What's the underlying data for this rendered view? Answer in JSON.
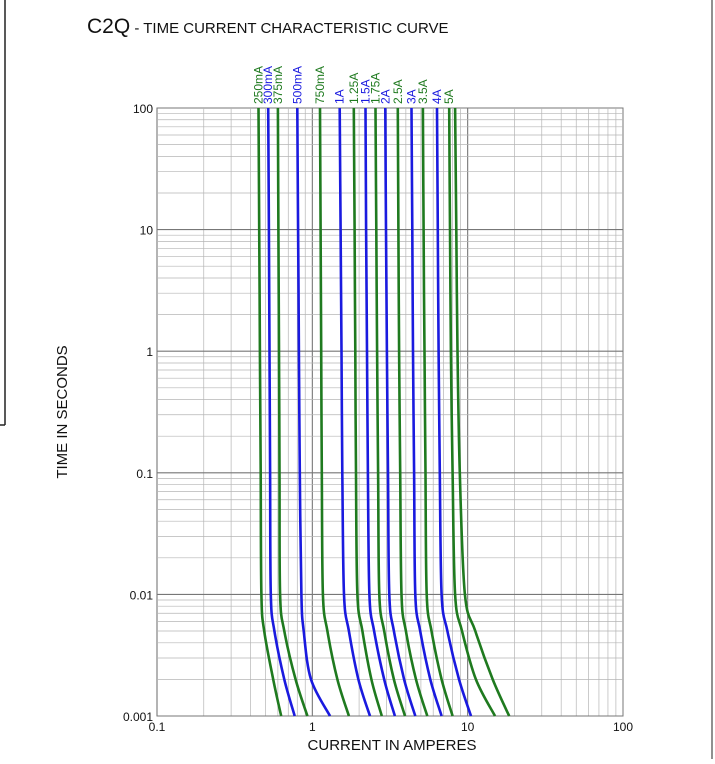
{
  "title": {
    "code": "C2Q",
    "rest": " - TIME CURRENT CHARACTERISTIC CURVE"
  },
  "colors": {
    "green": "#1f7a1f",
    "blue": "#1a1adf",
    "grid": "#b5b5b5",
    "axis": "#777777",
    "frame": "#222222"
  },
  "chart_data": {
    "type": "line",
    "title": "C2Q - TIME CURRENT CHARACTERISTIC CURVE",
    "xlabel": "CURRENT IN AMPERES",
    "ylabel": "TIME IN SECONDS",
    "x_scale": "log",
    "y_scale": "log",
    "xlim": [
      0.1,
      100
    ],
    "ylim": [
      0.001,
      100
    ],
    "x_ticks": [
      "0.1",
      "1",
      "10",
      "100"
    ],
    "y_ticks": [
      "0.001",
      "0.01",
      "0.1",
      "1",
      "10",
      "100"
    ],
    "grid": true,
    "legend": "rotated labels at top of each curve",
    "series": [
      {
        "name": "250mA",
        "color": "green",
        "points": [
          [
            0.45,
            100
          ],
          [
            0.455,
            10
          ],
          [
            0.46,
            1
          ],
          [
            0.465,
            0.1
          ],
          [
            0.47,
            0.01
          ],
          [
            0.49,
            0.005
          ],
          [
            0.56,
            0.002
          ],
          [
            0.63,
            0.001
          ]
        ]
      },
      {
        "name": "300mA",
        "color": "blue",
        "points": [
          [
            0.52,
            100
          ],
          [
            0.525,
            10
          ],
          [
            0.53,
            1
          ],
          [
            0.535,
            0.1
          ],
          [
            0.54,
            0.01
          ],
          [
            0.57,
            0.005
          ],
          [
            0.66,
            0.002
          ],
          [
            0.77,
            0.001
          ]
        ]
      },
      {
        "name": "375mA",
        "color": "green",
        "points": [
          [
            0.6,
            100
          ],
          [
            0.605,
            10
          ],
          [
            0.61,
            1
          ],
          [
            0.615,
            0.1
          ],
          [
            0.62,
            0.01
          ],
          [
            0.66,
            0.005
          ],
          [
            0.78,
            0.002
          ],
          [
            0.93,
            0.001
          ]
        ]
      },
      {
        "name": "500mA",
        "color": "blue",
        "points": [
          [
            0.8,
            100
          ],
          [
            0.81,
            10
          ],
          [
            0.82,
            1
          ],
          [
            0.83,
            0.1
          ],
          [
            0.85,
            0.01
          ],
          [
            0.88,
            0.005
          ],
          [
            0.98,
            0.002
          ],
          [
            1.3,
            0.001
          ]
        ]
      },
      {
        "name": "750mA",
        "color": "green",
        "points": [
          [
            1.12,
            100
          ],
          [
            1.13,
            10
          ],
          [
            1.14,
            1
          ],
          [
            1.15,
            0.1
          ],
          [
            1.17,
            0.01
          ],
          [
            1.25,
            0.005
          ],
          [
            1.45,
            0.002
          ],
          [
            1.72,
            0.001
          ]
        ]
      },
      {
        "name": "1A",
        "color": "blue",
        "points": [
          [
            1.5,
            100
          ],
          [
            1.52,
            10
          ],
          [
            1.54,
            1
          ],
          [
            1.56,
            0.1
          ],
          [
            1.6,
            0.01
          ],
          [
            1.72,
            0.005
          ],
          [
            1.98,
            0.002
          ],
          [
            2.35,
            0.001
          ]
        ]
      },
      {
        "name": "1.25A",
        "color": "green",
        "points": [
          [
            1.85,
            100
          ],
          [
            1.87,
            10
          ],
          [
            1.89,
            1
          ],
          [
            1.91,
            0.1
          ],
          [
            1.95,
            0.01
          ],
          [
            2.1,
            0.005
          ],
          [
            2.4,
            0.002
          ],
          [
            2.8,
            0.001
          ]
        ]
      },
      {
        "name": "1.5A",
        "color": "blue",
        "points": [
          [
            2.2,
            100
          ],
          [
            2.22,
            10
          ],
          [
            2.25,
            1
          ],
          [
            2.28,
            0.1
          ],
          [
            2.33,
            0.01
          ],
          [
            2.5,
            0.005
          ],
          [
            2.9,
            0.002
          ],
          [
            3.4,
            0.001
          ]
        ]
      },
      {
        "name": "1.75A",
        "color": "green",
        "points": [
          [
            2.55,
            100
          ],
          [
            2.58,
            10
          ],
          [
            2.61,
            1
          ],
          [
            2.65,
            0.1
          ],
          [
            2.7,
            0.01
          ],
          [
            2.9,
            0.005
          ],
          [
            3.35,
            0.002
          ],
          [
            3.95,
            0.001
          ]
        ]
      },
      {
        "name": "2A",
        "color": "blue",
        "points": [
          [
            2.95,
            100
          ],
          [
            2.98,
            10
          ],
          [
            3.02,
            1
          ],
          [
            3.07,
            0.1
          ],
          [
            3.13,
            0.01
          ],
          [
            3.35,
            0.005
          ],
          [
            3.9,
            0.002
          ],
          [
            4.6,
            0.001
          ]
        ]
      },
      {
        "name": "2.5A",
        "color": "green",
        "points": [
          [
            3.55,
            100
          ],
          [
            3.58,
            10
          ],
          [
            3.62,
            1
          ],
          [
            3.68,
            0.1
          ],
          [
            3.75,
            0.01
          ],
          [
            4.0,
            0.005
          ],
          [
            4.65,
            0.002
          ],
          [
            5.5,
            0.001
          ]
        ]
      },
      {
        "name": "3A",
        "color": "blue",
        "points": [
          [
            4.35,
            100
          ],
          [
            4.4,
            10
          ],
          [
            4.45,
            1
          ],
          [
            4.52,
            0.1
          ],
          [
            4.6,
            0.01
          ],
          [
            4.95,
            0.005
          ],
          [
            5.75,
            0.002
          ],
          [
            6.8,
            0.001
          ]
        ]
      },
      {
        "name": "3.5A",
        "color": "green",
        "points": [
          [
            5.15,
            100
          ],
          [
            5.2,
            10
          ],
          [
            5.27,
            1
          ],
          [
            5.35,
            0.1
          ],
          [
            5.45,
            0.01
          ],
          [
            5.85,
            0.005
          ],
          [
            6.8,
            0.002
          ],
          [
            8.0,
            0.001
          ]
        ]
      },
      {
        "name": "4A",
        "color": "blue",
        "points": [
          [
            6.35,
            100
          ],
          [
            6.42,
            10
          ],
          [
            6.5,
            1
          ],
          [
            6.62,
            0.1
          ],
          [
            6.8,
            0.01
          ],
          [
            7.4,
            0.005
          ],
          [
            8.8,
            0.002
          ],
          [
            10.5,
            0.001
          ]
        ]
      },
      {
        "name": "5A",
        "color": "green",
        "points": [
          [
            7.6,
            100
          ],
          [
            7.7,
            10
          ],
          [
            7.8,
            1
          ],
          [
            8.0,
            0.1
          ],
          [
            8.3,
            0.01
          ],
          [
            9.2,
            0.005
          ],
          [
            11.3,
            0.002
          ],
          [
            15.0,
            0.001
          ]
        ]
      },
      {
        "name": "",
        "color": "green",
        "points": [
          [
            8.3,
            100
          ],
          [
            8.45,
            10
          ],
          [
            8.6,
            1
          ],
          [
            8.9,
            0.1
          ],
          [
            9.6,
            0.01
          ],
          [
            11.2,
            0.005
          ],
          [
            14.5,
            0.002
          ],
          [
            18.5,
            0.001
          ]
        ]
      }
    ]
  }
}
